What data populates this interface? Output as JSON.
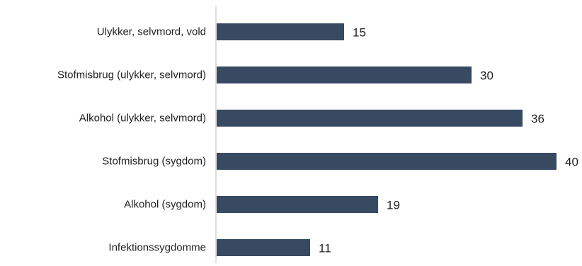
{
  "chart_data": {
    "type": "bar",
    "orientation": "horizontal",
    "categories": [
      "Ulykker, selvmord, vold",
      "Stofmisbrug (ulykker, selvmord)",
      "Alkohol (ulykker, selvmord)",
      "Stofmisbrug (sygdom)",
      "Alkohol (sygdom)",
      "Infektionssygdomme"
    ],
    "values": [
      15,
      30,
      36,
      40,
      19,
      11
    ],
    "value_labels": [
      "15",
      "30",
      "36",
      "40",
      "19",
      "11"
    ],
    "title": "",
    "xlabel": "",
    "ylabel": "",
    "xlim": [
      0,
      40
    ],
    "grid": false,
    "legend": "none",
    "bar_color": "#374a61",
    "axis_color": "#bfbfbf"
  }
}
